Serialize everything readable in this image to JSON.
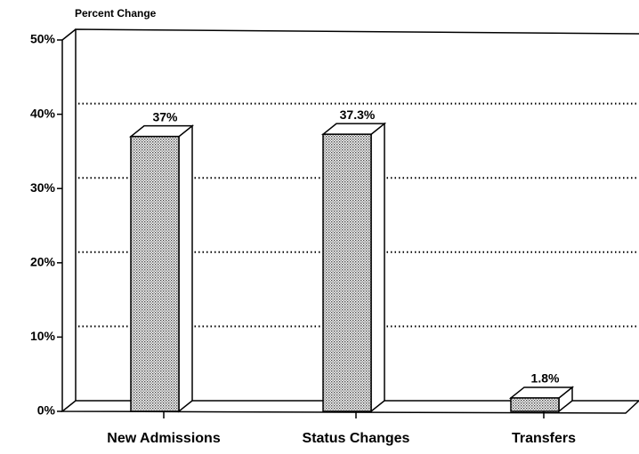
{
  "chart_data": {
    "type": "bar3d",
    "ylabel": "Percent Change",
    "categories": [
      "New Admissions",
      "Status Changes",
      "Transfers"
    ],
    "values": [
      37,
      37.3,
      1.8
    ],
    "value_labels": [
      "37%",
      "37.3%",
      "1.8%"
    ],
    "color": "#b8b8b8",
    "ylim": [
      0,
      50
    ],
    "yticks": [
      {
        "value": 0,
        "label": "0%"
      },
      {
        "value": 10,
        "label": "10%"
      },
      {
        "value": 20,
        "label": "20%"
      },
      {
        "value": 30,
        "label": "30%"
      },
      {
        "value": 40,
        "label": "40%"
      },
      {
        "value": 50,
        "label": "50%"
      }
    ],
    "grid": true
  }
}
